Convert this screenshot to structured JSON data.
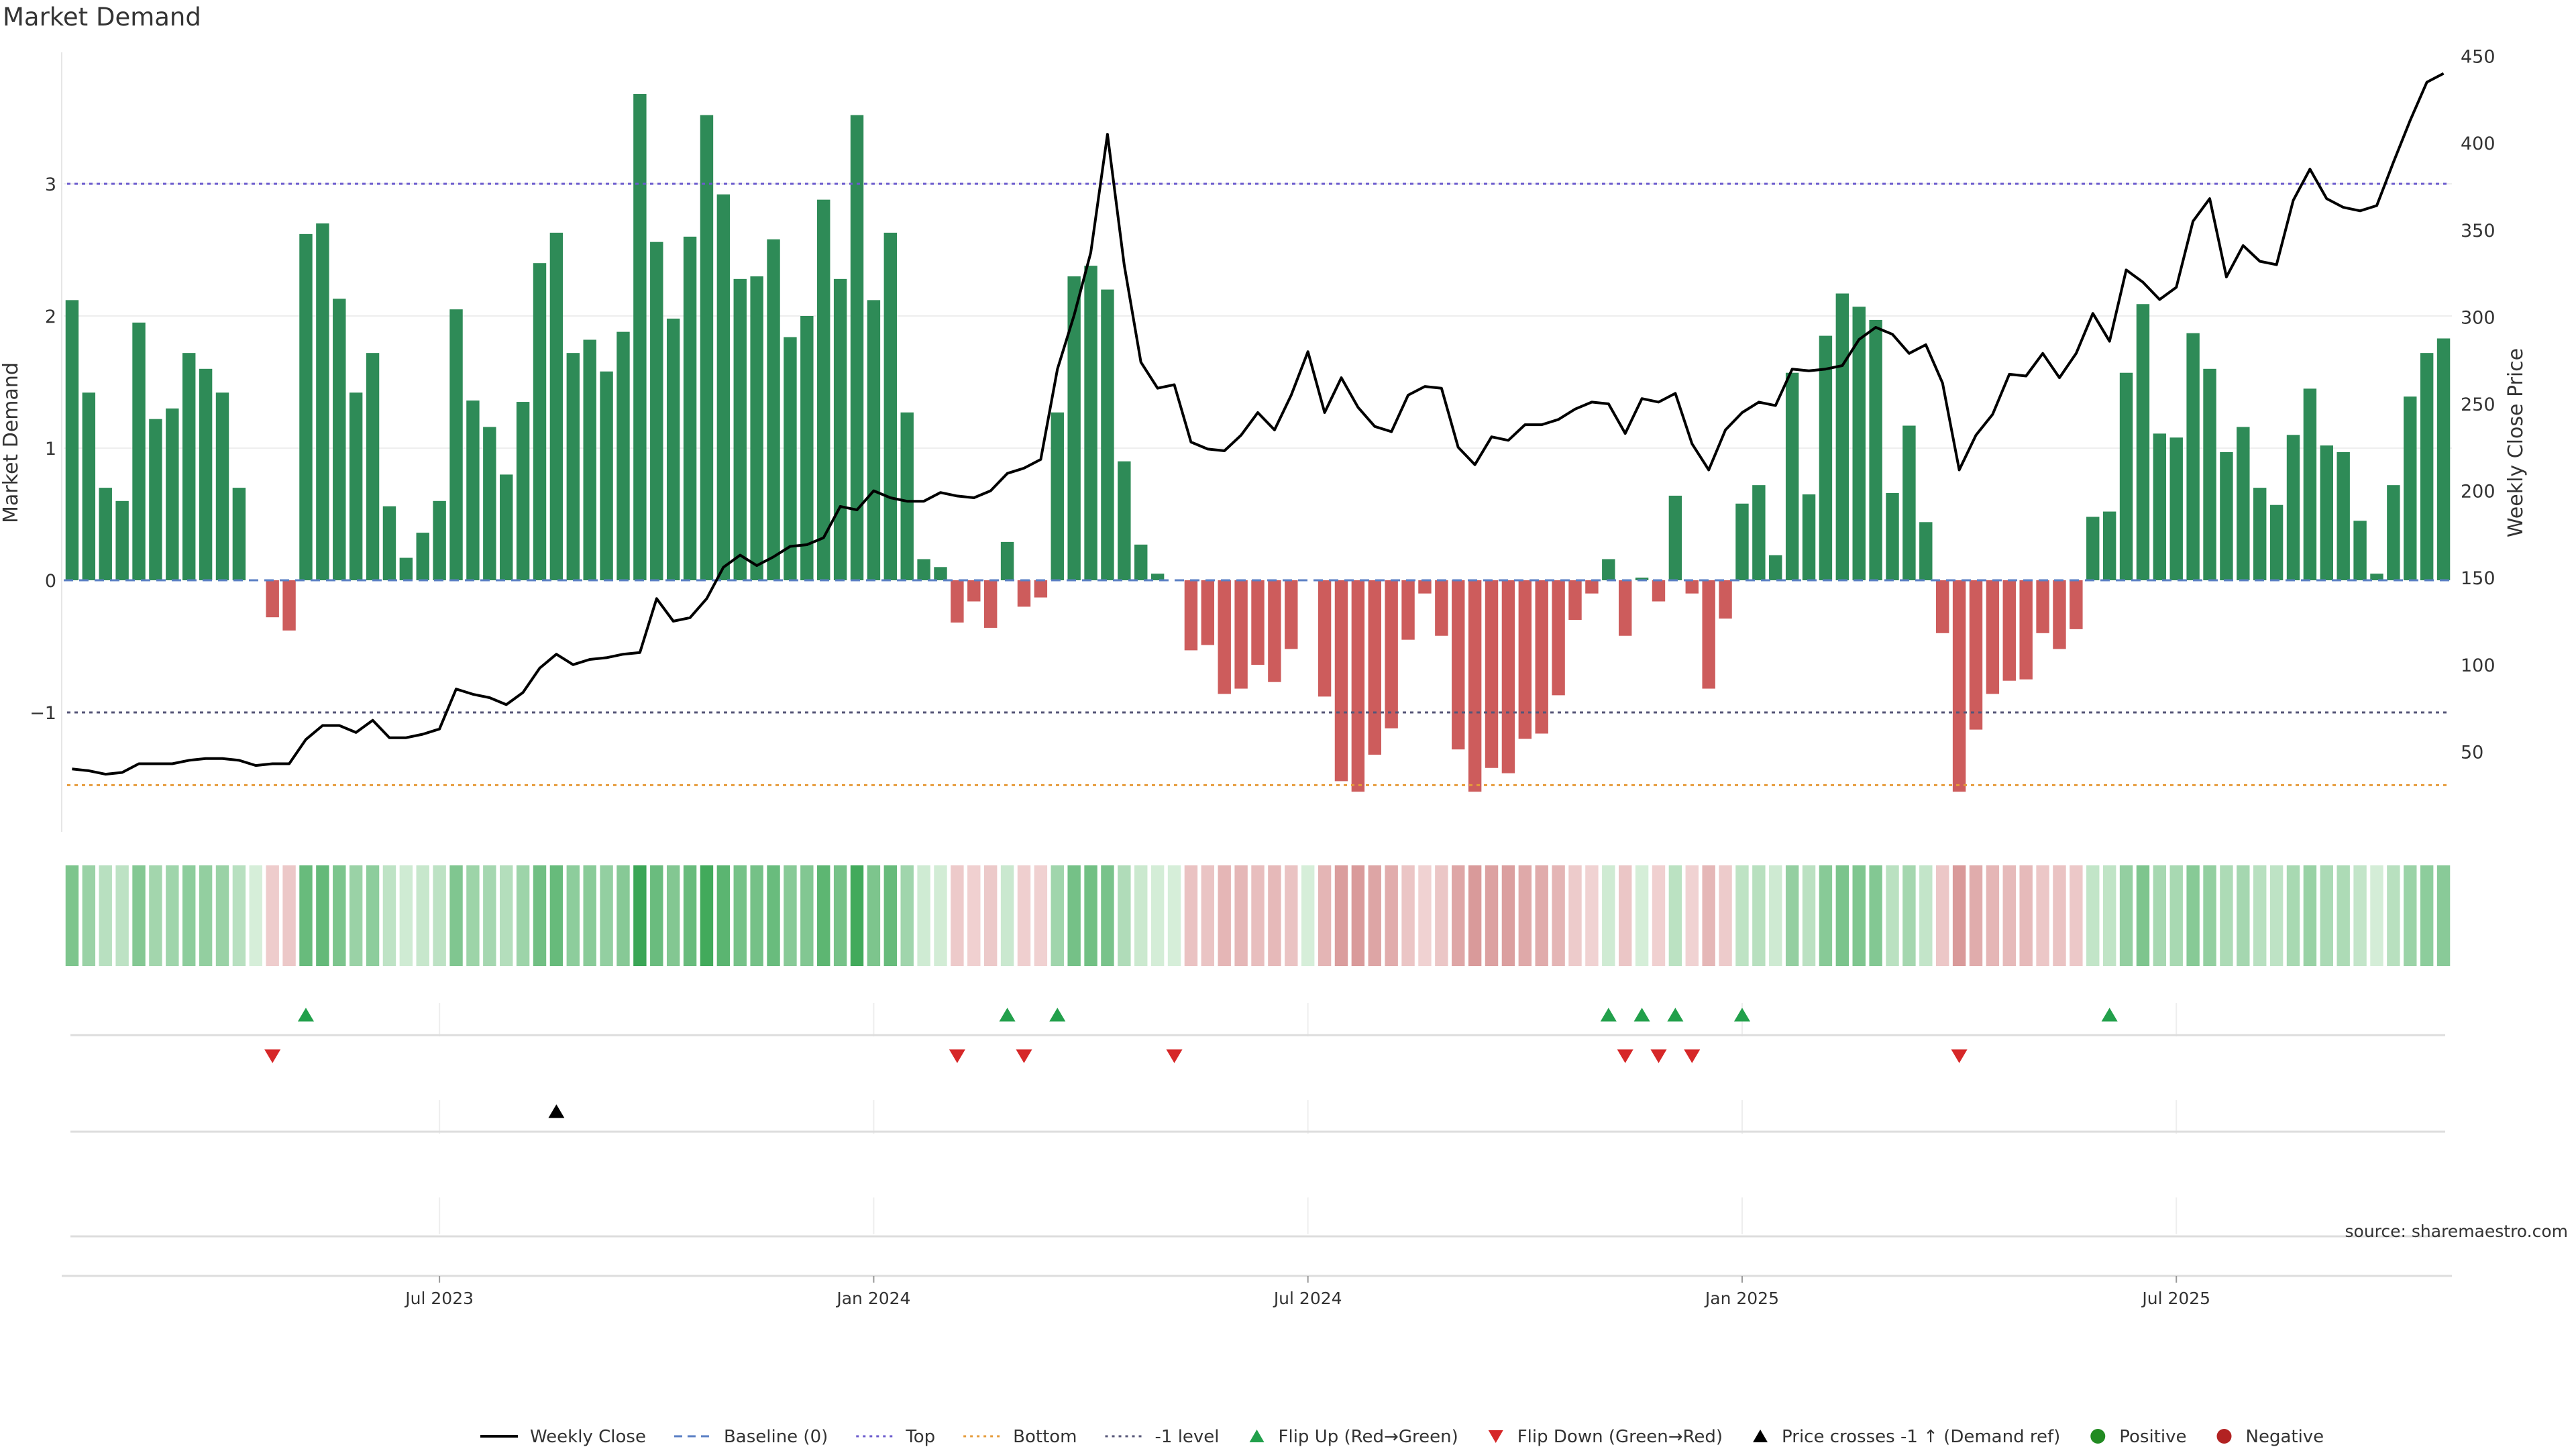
{
  "title": "Market Demand",
  "source": "source: sharemaestro.com",
  "colors": {
    "positive": "#2e8b57",
    "negative": "#cd5c5c",
    "price_line": "#000000",
    "top_line": "#6a5acd",
    "bottom_line": "#e69b3a",
    "minus1_line": "#555577",
    "flip_up": "#22a04b",
    "flip_down": "#d62728",
    "cross_marker": "#000000",
    "positive_dot": "#228b22",
    "negative_dot": "#b22222"
  },
  "legend": [
    {
      "label": "Weekly Close",
      "kind": "line-solid"
    },
    {
      "label": "Baseline (0)",
      "kind": "line-dash-blue"
    },
    {
      "label": "Top",
      "kind": "line-dot-purple"
    },
    {
      "label": "Bottom",
      "kind": "line-dot-orange"
    },
    {
      "label": "-1 level",
      "kind": "line-dot-gray"
    },
    {
      "label": "Flip Up (Red→Green)",
      "kind": "tri-up-green"
    },
    {
      "label": "Flip Down (Green→Red)",
      "kind": "tri-down-red"
    },
    {
      "label": "Price crosses -1 ↑ (Demand ref)",
      "kind": "tri-up-black"
    },
    {
      "label": "Positive",
      "kind": "dot-green"
    },
    {
      "label": "Negative",
      "kind": "dot-red"
    }
  ],
  "chart_data": {
    "type": "bar",
    "ylabel": "Market Demand",
    "y2label": "Weekly Close Price",
    "ylim": [
      -1.9,
      4.0
    ],
    "y2lim": [
      20,
      460
    ],
    "yticks": [
      3,
      2,
      1,
      0,
      -1
    ],
    "ytick_labels": [
      "3",
      "2",
      "1",
      "0",
      "−1"
    ],
    "y2ticks": [
      450,
      400,
      350,
      300,
      250,
      200,
      150,
      100,
      50
    ],
    "levels": {
      "top": 3,
      "minus1": -1,
      "bottom": -1.55,
      "baseline": 0
    },
    "date_ticks": [
      {
        "label": "Jul 2023",
        "index": 22
      },
      {
        "label": "Jan 2024",
        "index": 48
      },
      {
        "label": "Jul 2024",
        "index": 74
      },
      {
        "label": "Jan 2025",
        "index": 100
      },
      {
        "label": "Jul 2025",
        "index": 126
      }
    ],
    "demand": [
      2.12,
      1.42,
      0.7,
      0.6,
      1.95,
      1.22,
      1.3,
      1.72,
      1.6,
      1.42,
      0.7,
      0.0,
      -0.28,
      -0.38,
      2.62,
      2.7,
      2.13,
      1.42,
      1.72,
      0.56,
      0.17,
      0.36,
      0.6,
      2.05,
      1.36,
      1.16,
      0.8,
      1.35,
      2.4,
      2.63,
      1.72,
      1.82,
      1.58,
      1.88,
      3.68,
      2.56,
      1.98,
      2.6,
      3.52,
      2.92,
      2.28,
      2.3,
      2.58,
      1.84,
      2.0,
      2.88,
      2.28,
      3.52,
      2.12,
      2.63,
      1.27,
      0.16,
      0.1,
      -0.32,
      -0.16,
      -0.36,
      0.29,
      -0.2,
      -0.13,
      1.27,
      2.3,
      2.38,
      2.2,
      0.9,
      0.27,
      0.05,
      0.0,
      -0.53,
      -0.49,
      -0.86,
      -0.82,
      -0.64,
      -0.77,
      -0.52,
      0.0,
      -0.88,
      -1.52,
      -1.6,
      -1.32,
      -1.12,
      -0.45,
      -0.1,
      -0.42,
      -1.28,
      -1.6,
      -1.42,
      -1.46,
      -1.2,
      -1.16,
      -0.87,
      -0.3,
      -0.1,
      0.16,
      -0.42,
      0.02,
      -0.16,
      0.64,
      -0.1,
      -0.82,
      -0.29,
      0.58,
      0.72,
      0.19,
      1.57,
      0.65,
      1.85,
      2.17,
      2.07,
      1.97,
      0.66,
      1.17,
      0.44,
      -0.4,
      -1.6,
      -1.13,
      -0.86,
      -0.76,
      -0.75,
      -0.4,
      -0.52,
      -0.37,
      0.48,
      0.52,
      1.57,
      2.09,
      1.11,
      1.08,
      1.87,
      1.6,
      0.97,
      1.16,
      0.7,
      0.57,
      1.1,
      1.45,
      1.02,
      0.97,
      0.45,
      0.05,
      0.72,
      1.39,
      1.72,
      1.83
    ],
    "price": [
      40,
      39,
      37,
      38,
      43,
      43,
      43,
      45,
      46,
      46,
      45,
      42,
      43,
      43,
      57,
      65,
      65,
      61,
      68,
      58,
      58,
      60,
      63,
      86,
      83,
      81,
      77,
      84,
      98,
      106,
      100,
      103,
      104,
      106,
      107,
      138,
      125,
      127,
      138,
      156,
      163,
      157,
      162,
      168,
      169,
      173,
      191,
      189,
      200,
      196,
      194,
      194,
      199,
      197,
      196,
      200,
      210,
      213,
      218,
      270,
      301,
      337,
      405,
      330,
      274,
      259,
      261,
      228,
      224,
      223,
      232,
      245,
      235,
      255,
      280,
      245,
      265,
      248,
      237,
      234,
      255,
      260,
      259,
      225,
      215,
      231,
      229,
      238,
      238,
      241,
      247,
      251,
      250,
      233,
      253,
      251,
      256,
      227,
      212,
      235,
      245,
      251,
      249,
      270,
      269,
      270,
      272,
      287,
      294,
      290,
      279,
      284,
      262,
      212,
      232,
      244,
      267,
      266,
      279,
      265,
      279,
      302,
      286,
      327,
      320,
      310,
      317,
      355,
      368,
      323,
      341,
      332,
      330,
      367,
      385,
      368,
      363,
      361,
      364,
      389,
      413,
      435,
      440
    ],
    "flip_up_indices": [
      14,
      56,
      59,
      92,
      94,
      96,
      100,
      122
    ],
    "flip_down_indices": [
      12,
      53,
      57,
      66,
      93,
      95,
      97,
      113
    ],
    "price_cross_indices": [
      29
    ],
    "positive_label": "Positive",
    "negative_label": "Negative"
  }
}
